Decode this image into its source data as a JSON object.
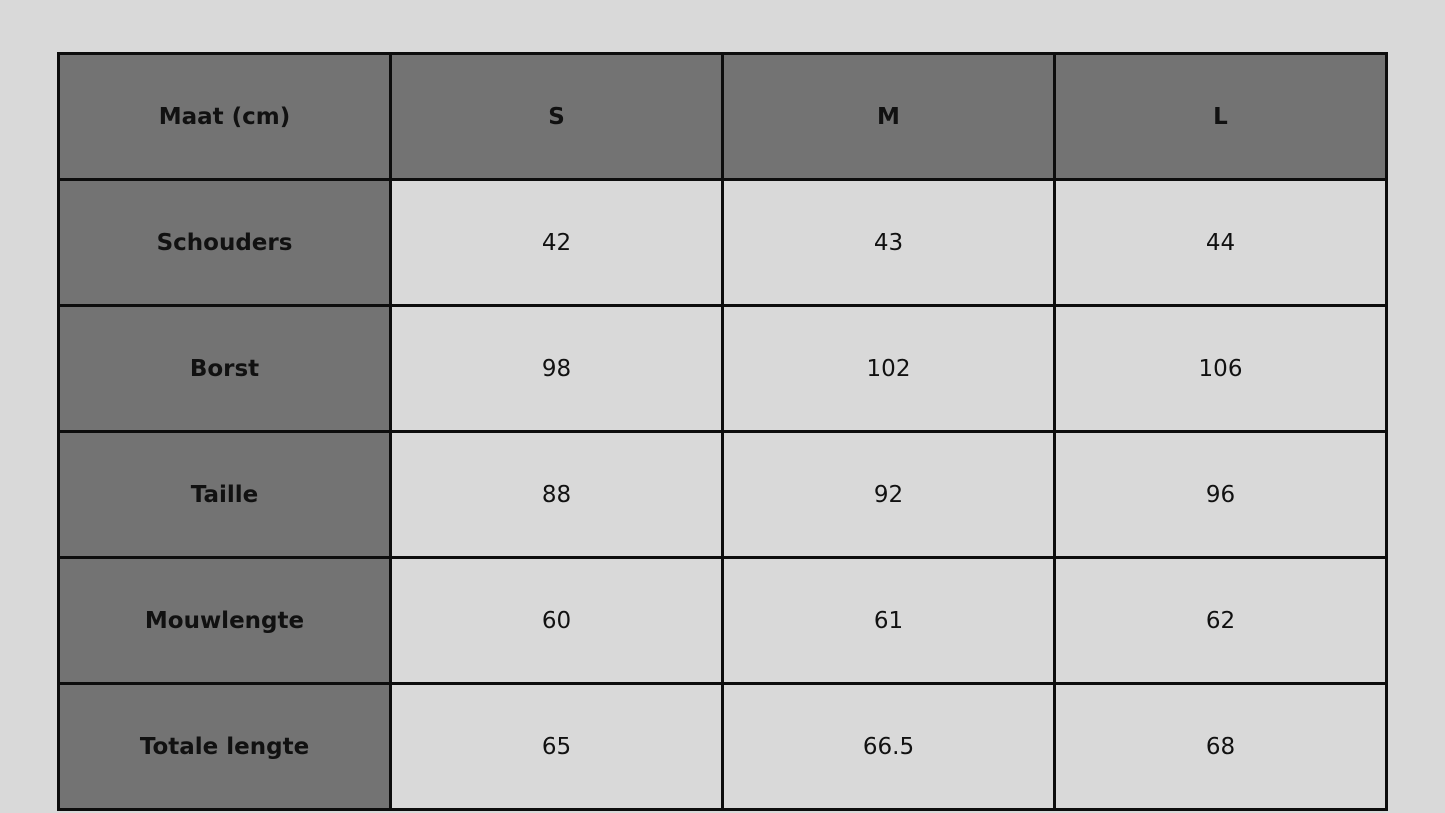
{
  "colors": {
    "background": "#d9d9d9",
    "header": "#737373",
    "border": "#0d0d0d"
  },
  "table": {
    "headers": [
      "Maat (cm)",
      "S",
      "M",
      "L"
    ],
    "rows": [
      {
        "label": "Schouders",
        "values": [
          "42",
          "43",
          "44"
        ]
      },
      {
        "label": "Borst",
        "values": [
          "98",
          "102",
          "106"
        ]
      },
      {
        "label": "Taille",
        "values": [
          "88",
          "92",
          "96"
        ]
      },
      {
        "label": "Mouwlengte",
        "values": [
          "60",
          "61",
          "62"
        ]
      },
      {
        "label": "Totale lengte",
        "values": [
          "65",
          "66.5",
          "68"
        ]
      }
    ]
  }
}
